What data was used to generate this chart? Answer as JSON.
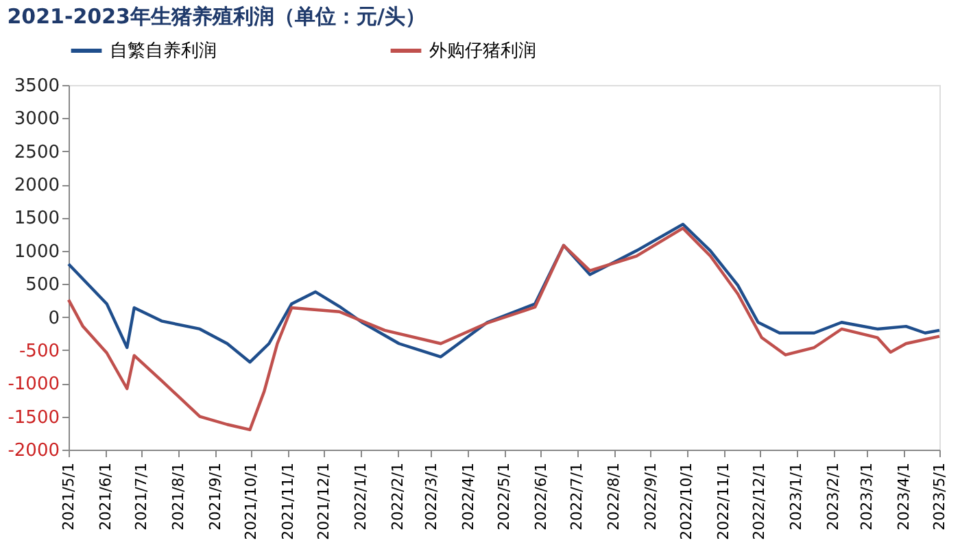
{
  "chart_data": {
    "type": "line",
    "title": "2021-2023年生猪养殖利润（单位：元/头）",
    "series": [
      {
        "name": "自繁自养利润",
        "color": "#1f4e8c",
        "x": [
          "2021-05-01",
          "2021-06-02",
          "2021-06-19",
          "2021-06-25",
          "2021-07-18",
          "2021-08-19",
          "2021-09-11",
          "2021-09-30",
          "2021-10-16",
          "2021-11-04",
          "2021-11-24",
          "2021-12-14",
          "2022-01-02",
          "2022-02-02",
          "2022-03-09",
          "2022-04-17",
          "2022-05-27",
          "2022-06-20",
          "2022-07-12",
          "2022-08-20",
          "2022-09-28",
          "2022-10-21",
          "2022-11-13",
          "2022-11-30",
          "2022-12-18",
          "2023-01-16",
          "2023-02-08",
          "2023-03-10",
          "2023-04-03",
          "2023-04-19",
          "2023-05-01"
        ],
        "values": [
          800,
          200,
          -460,
          140,
          -60,
          -180,
          -400,
          -680,
          -400,
          200,
          380,
          160,
          -80,
          -400,
          -600,
          -80,
          200,
          1080,
          640,
          1000,
          1400,
          1000,
          480,
          -80,
          -240,
          -240,
          -80,
          -180,
          -140,
          -240,
          -200
        ]
      },
      {
        "name": "外购仔猪利润",
        "color": "#c0504d",
        "x": [
          "2021-05-01",
          "2021-05-13",
          "2021-06-02",
          "2021-06-19",
          "2021-06-25",
          "2021-07-18",
          "2021-08-19",
          "2021-09-11",
          "2021-09-30",
          "2021-10-12",
          "2021-10-23",
          "2021-11-04",
          "2021-12-14",
          "2022-01-21",
          "2022-03-09",
          "2022-04-17",
          "2022-05-27",
          "2022-06-20",
          "2022-07-12",
          "2022-08-20",
          "2022-09-28",
          "2022-10-21",
          "2022-11-13",
          "2022-12-03",
          "2022-12-23",
          "2023-01-16",
          "2023-02-08",
          "2023-03-10",
          "2023-03-21",
          "2023-04-03",
          "2023-05-01"
        ],
        "values": [
          260,
          -140,
          -540,
          -1080,
          -580,
          -960,
          -1500,
          -1620,
          -1700,
          -1120,
          -400,
          140,
          80,
          -200,
          -400,
          -90,
          150,
          1080,
          700,
          920,
          1340,
          920,
          350,
          -310,
          -570,
          -460,
          -180,
          -310,
          -530,
          -400,
          -290
        ]
      }
    ],
    "xlim": [
      "2021-05-01",
      "2023-05-01"
    ],
    "xticks": [
      {
        "value": "2021-05-01",
        "label": "2021/5/1"
      },
      {
        "value": "2021-06-01",
        "label": "2021/6/1"
      },
      {
        "value": "2021-07-01",
        "label": "2021/7/1"
      },
      {
        "value": "2021-08-01",
        "label": "2021/8/1"
      },
      {
        "value": "2021-09-01",
        "label": "2021/9/1"
      },
      {
        "value": "2021-10-01",
        "label": "2021/10/1"
      },
      {
        "value": "2021-11-01",
        "label": "2021/11/1"
      },
      {
        "value": "2021-12-01",
        "label": "2021/12/1"
      },
      {
        "value": "2022-01-01",
        "label": "2022/1/1"
      },
      {
        "value": "2022-02-01",
        "label": "2022/2/1"
      },
      {
        "value": "2022-03-01",
        "label": "2022/3/1"
      },
      {
        "value": "2022-04-01",
        "label": "2022/4/1"
      },
      {
        "value": "2022-05-01",
        "label": "2022/5/1"
      },
      {
        "value": "2022-06-01",
        "label": "2022/6/1"
      },
      {
        "value": "2022-07-01",
        "label": "2022/7/1"
      },
      {
        "value": "2022-08-01",
        "label": "2022/8/1"
      },
      {
        "value": "2022-09-01",
        "label": "2022/9/1"
      },
      {
        "value": "2022-10-01",
        "label": "2022/10/1"
      },
      {
        "value": "2022-11-01",
        "label": "2022/11/1"
      },
      {
        "value": "2022-12-01",
        "label": "2022/12/1"
      },
      {
        "value": "2023-01-01",
        "label": "2023/1/1"
      },
      {
        "value": "2023-02-01",
        "label": "2023/2/1"
      },
      {
        "value": "2023-03-01",
        "label": "2023/3/1"
      },
      {
        "value": "2023-04-01",
        "label": "2023/4/1"
      },
      {
        "value": "2023-05-01",
        "label": "2023/5/1"
      }
    ],
    "ylim": [
      -2000,
      3500
    ],
    "yticks": [
      -2000,
      -1500,
      -1000,
      -500,
      0,
      500,
      1000,
      1500,
      2000,
      2500,
      3000,
      3500
    ],
    "grid": false,
    "legend": "top",
    "marker": "none",
    "line_style": "solid"
  }
}
